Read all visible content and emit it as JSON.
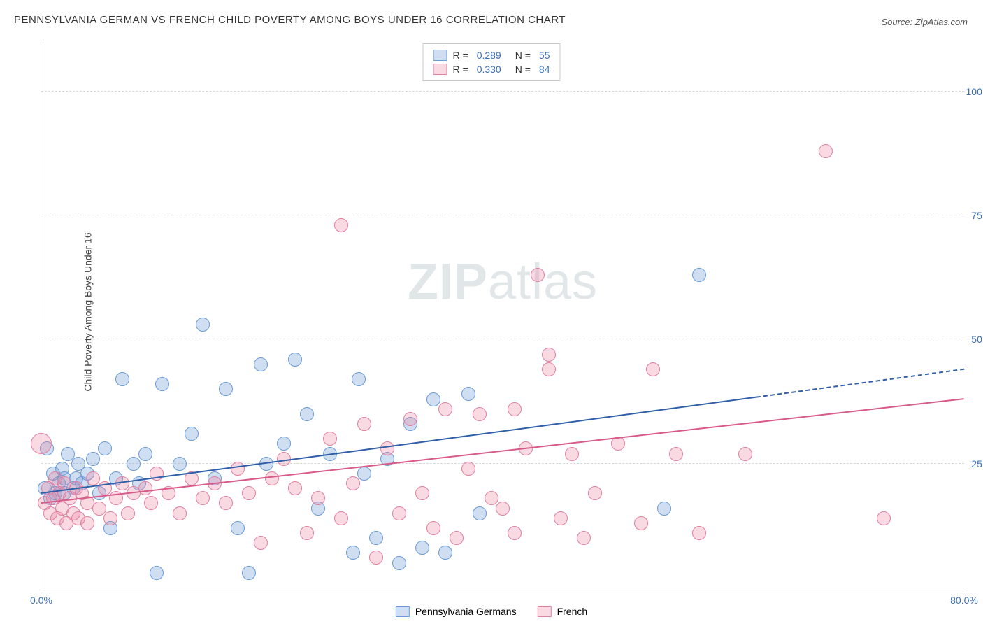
{
  "title": "PENNSYLVANIA GERMAN VS FRENCH CHILD POVERTY AMONG BOYS UNDER 16 CORRELATION CHART",
  "source": "Source: ZipAtlas.com",
  "ylabel": "Child Poverty Among Boys Under 16",
  "watermark_bold": "ZIP",
  "watermark_light": "atlas",
  "axes": {
    "xlim": [
      0,
      80
    ],
    "ylim": [
      0,
      110
    ],
    "xticks": [
      {
        "v": 0,
        "label": "0.0%"
      },
      {
        "v": 80,
        "label": "80.0%"
      }
    ],
    "yticks": [
      {
        "v": 25,
        "label": "25.0%"
      },
      {
        "v": 50,
        "label": "50.0%"
      },
      {
        "v": 75,
        "label": "75.0%"
      },
      {
        "v": 100,
        "label": "100.0%"
      }
    ],
    "grid_color": "#d8d8d8"
  },
  "series": [
    {
      "id": "penn_german",
      "label": "Pennsylvania Germans",
      "fill": "rgba(120,160,215,0.35)",
      "stroke": "#6a9bd8",
      "line_color": "#2f5fa8",
      "r_label": "R =",
      "r_value": "0.289",
      "n_label": "N =",
      "n_value": "55",
      "trend": {
        "x1": 0,
        "y1": 19,
        "x2_solid": 62,
        "x2": 80,
        "y2": 44
      },
      "points": [
        [
          0.3,
          20
        ],
        [
          0.5,
          28
        ],
        [
          0.8,
          18
        ],
        [
          1,
          23
        ],
        [
          1.2,
          19
        ],
        [
          1.5,
          21
        ],
        [
          1.8,
          24
        ],
        [
          2,
          22
        ],
        [
          2,
          19
        ],
        [
          2.3,
          27
        ],
        [
          2.8,
          20
        ],
        [
          3,
          22
        ],
        [
          3.2,
          25
        ],
        [
          3.5,
          21
        ],
        [
          4,
          23
        ],
        [
          4.5,
          26
        ],
        [
          5,
          19
        ],
        [
          5.5,
          28
        ],
        [
          6,
          12
        ],
        [
          6.5,
          22
        ],
        [
          7,
          42
        ],
        [
          8,
          25
        ],
        [
          8.5,
          21
        ],
        [
          9,
          27
        ],
        [
          10,
          3
        ],
        [
          10.5,
          41
        ],
        [
          12,
          25
        ],
        [
          13,
          31
        ],
        [
          14,
          53
        ],
        [
          15,
          22
        ],
        [
          16,
          40
        ],
        [
          17,
          12
        ],
        [
          18,
          3
        ],
        [
          19,
          45
        ],
        [
          19.5,
          25
        ],
        [
          21,
          29
        ],
        [
          22,
          46
        ],
        [
          23,
          35
        ],
        [
          24,
          16
        ],
        [
          25,
          27
        ],
        [
          27,
          7
        ],
        [
          27.5,
          42
        ],
        [
          28,
          23
        ],
        [
          29,
          10
        ],
        [
          30,
          26
        ],
        [
          31,
          5
        ],
        [
          32,
          33
        ],
        [
          33,
          8
        ],
        [
          34,
          38
        ],
        [
          35,
          7
        ],
        [
          37,
          39
        ],
        [
          38,
          15
        ],
        [
          54,
          16
        ],
        [
          57,
          63
        ]
      ]
    },
    {
      "id": "french",
      "label": "French",
      "fill": "rgba(235,130,160,0.30)",
      "stroke": "#e07fa0",
      "line_color": "#d85a88",
      "r_label": "R =",
      "r_value": "0.330",
      "n_label": "N =",
      "n_value": "84",
      "trend": {
        "x1": 0,
        "y1": 17,
        "x2_solid": 80,
        "x2": 80,
        "y2": 38
      },
      "points": [
        [
          0,
          29,
          14
        ],
        [
          0.3,
          17
        ],
        [
          0.6,
          20
        ],
        [
          0.8,
          15
        ],
        [
          1,
          18
        ],
        [
          1.2,
          22
        ],
        [
          1.4,
          14
        ],
        [
          1.6,
          19
        ],
        [
          1.8,
          16
        ],
        [
          2,
          21
        ],
        [
          2.2,
          13
        ],
        [
          2.5,
          18
        ],
        [
          2.8,
          15
        ],
        [
          3,
          20
        ],
        [
          3.2,
          14
        ],
        [
          3.5,
          19
        ],
        [
          4,
          17
        ],
        [
          4,
          13
        ],
        [
          4.5,
          22
        ],
        [
          5,
          16
        ],
        [
          5.5,
          20
        ],
        [
          6,
          14
        ],
        [
          6.5,
          18
        ],
        [
          7,
          21
        ],
        [
          7.5,
          15
        ],
        [
          8,
          19
        ],
        [
          9,
          20
        ],
        [
          9.5,
          17
        ],
        [
          10,
          23
        ],
        [
          11,
          19
        ],
        [
          12,
          15
        ],
        [
          13,
          22
        ],
        [
          14,
          18
        ],
        [
          15,
          21
        ],
        [
          16,
          17
        ],
        [
          17,
          24
        ],
        [
          18,
          19
        ],
        [
          19,
          9
        ],
        [
          20,
          22
        ],
        [
          21,
          26
        ],
        [
          22,
          20
        ],
        [
          23,
          11
        ],
        [
          24,
          18
        ],
        [
          25,
          30
        ],
        [
          26,
          14
        ],
        [
          26,
          73
        ],
        [
          27,
          21
        ],
        [
          28,
          33
        ],
        [
          29,
          6
        ],
        [
          30,
          28
        ],
        [
          31,
          15
        ],
        [
          32,
          34
        ],
        [
          33,
          19
        ],
        [
          34,
          12
        ],
        [
          35,
          36
        ],
        [
          36,
          10
        ],
        [
          37,
          24
        ],
        [
          38,
          35
        ],
        [
          39,
          18
        ],
        [
          40,
          16
        ],
        [
          41,
          11
        ],
        [
          41,
          36
        ],
        [
          42,
          28
        ],
        [
          43,
          63
        ],
        [
          44,
          47
        ],
        [
          44,
          44
        ],
        [
          45,
          14
        ],
        [
          46,
          27
        ],
        [
          47,
          10
        ],
        [
          48,
          19
        ],
        [
          50,
          29
        ],
        [
          52,
          13
        ],
        [
          53,
          44
        ],
        [
          55,
          27
        ],
        [
          57,
          11
        ],
        [
          61,
          27
        ],
        [
          68,
          88
        ],
        [
          73,
          14
        ]
      ]
    }
  ]
}
